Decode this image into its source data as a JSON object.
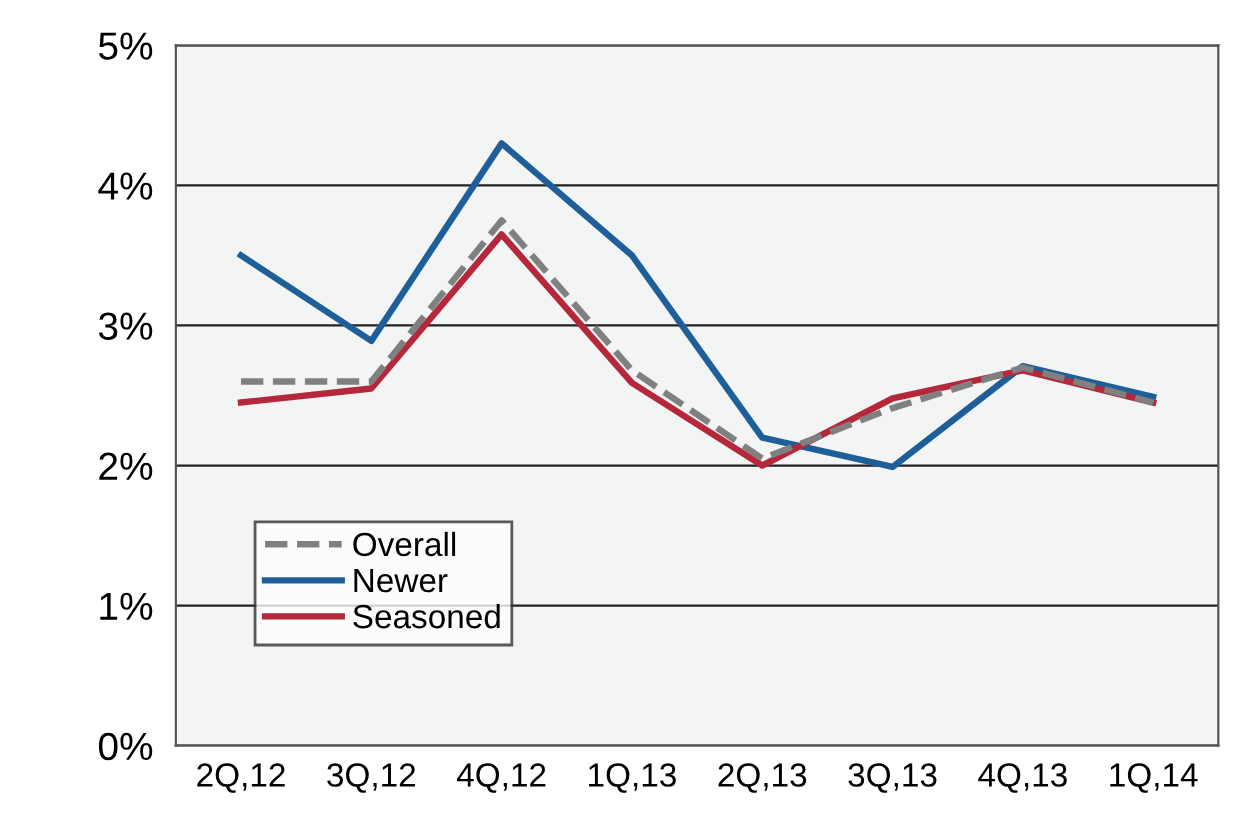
{
  "chart_data": {
    "type": "line",
    "categories": [
      "2Q,12",
      "3Q,12",
      "4Q,12",
      "1Q,13",
      "2Q,13",
      "3Q,13",
      "4Q,13",
      "1Q,14"
    ],
    "series": [
      {
        "name": "Overall",
        "color": "#808080",
        "line_style": "dashed",
        "values": [
          2.6,
          2.6,
          3.75,
          2.68,
          2.05,
          2.41,
          2.7,
          2.45
        ]
      },
      {
        "name": "Newer",
        "color": "#1f5f99",
        "line_style": "solid",
        "values": [
          3.5,
          2.89,
          4.3,
          3.5,
          2.2,
          1.99,
          2.71,
          2.49
        ]
      },
      {
        "name": "Seasoned",
        "color": "#b5283b",
        "line_style": "solid",
        "values": [
          2.45,
          2.55,
          3.65,
          2.59,
          2.0,
          2.48,
          2.68,
          2.45
        ]
      }
    ],
    "ylim": [
      0,
      5
    ],
    "yticks": [
      {
        "value": 0,
        "label": "0%"
      },
      {
        "value": 1,
        "label": "1%"
      },
      {
        "value": 2,
        "label": "2%"
      },
      {
        "value": 3,
        "label": "3%"
      },
      {
        "value": 4,
        "label": "4%"
      },
      {
        "value": 5,
        "label": "5%"
      }
    ],
    "grid": "y",
    "legend": "bottom left"
  }
}
